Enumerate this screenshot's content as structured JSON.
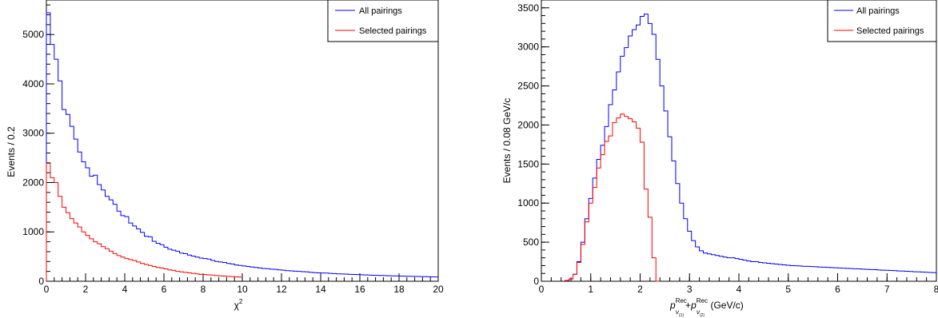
{
  "chart_data": [
    {
      "type": "step",
      "xlabel": "χ",
      "xlabel_superscript": "2",
      "ylabel": "Events / 0.2",
      "xlim": [
        0,
        20
      ],
      "ylim": [
        0,
        5700
      ],
      "x_ticks": [
        "0",
        "2",
        "4",
        "6",
        "8",
        "10",
        "12",
        "14",
        "16",
        "18",
        "20"
      ],
      "y_ticks": [
        "0",
        "1000",
        "2000",
        "3000",
        "4000",
        "5000"
      ],
      "x_tick_values": [
        0,
        2,
        4,
        6,
        8,
        10,
        12,
        14,
        16,
        18,
        20
      ],
      "y_tick_values": [
        0,
        1000,
        2000,
        3000,
        4000,
        5000
      ],
      "legend_position": "top-right",
      "bin_width": 0.2,
      "series": [
        {
          "name": "All pairings",
          "color": "#0000ff",
          "x_range": [
            0,
            20
          ],
          "values": [
            5440,
            4800,
            4500,
            4060,
            3480,
            3380,
            3140,
            2880,
            2620,
            2420,
            2300,
            2130,
            2150,
            1960,
            1850,
            1720,
            1650,
            1560,
            1420,
            1330,
            1310,
            1180,
            1120,
            1060,
            990,
            910,
            900,
            810,
            770,
            740,
            690,
            650,
            630,
            610,
            570,
            560,
            530,
            510,
            490,
            470,
            460,
            450,
            420,
            400,
            390,
            380,
            360,
            350,
            330,
            320,
            310,
            300,
            290,
            280,
            270,
            260,
            255,
            245,
            240,
            230,
            225,
            215,
            210,
            205,
            200,
            195,
            190,
            180,
            175,
            170,
            168,
            165,
            160,
            155,
            150,
            148,
            145,
            140,
            138,
            135,
            132,
            128,
            125,
            122,
            120,
            118,
            115,
            112,
            110,
            108,
            106,
            104,
            102,
            100,
            98,
            96,
            94,
            92,
            90,
            88
          ]
        },
        {
          "name": "Selected pairings",
          "color": "#ff0000",
          "x_range": [
            0,
            10
          ],
          "values": [
            2390,
            2100,
            2000,
            1720,
            1500,
            1390,
            1270,
            1180,
            1100,
            1000,
            930,
            860,
            800,
            760,
            700,
            660,
            610,
            560,
            520,
            490,
            460,
            440,
            420,
            390,
            360,
            340,
            320,
            300,
            280,
            270,
            250,
            230,
            220,
            200,
            190,
            180,
            170,
            160,
            150,
            140,
            135,
            130,
            125,
            115,
            110,
            105,
            100,
            95,
            90,
            85
          ]
        }
      ]
    },
    {
      "type": "step",
      "xlabel_p1": "p",
      "xlabel_sup1": "Rec",
      "xlabel_sub1": "ν",
      "xlabel_subsub1": "(1)",
      "xlabel_plus": "+",
      "xlabel_p2": "p",
      "xlabel_sup2": "Rec",
      "xlabel_sub2": "ν",
      "xlabel_subsub2": "(2)",
      "xlabel_unit": " (GeV/c)",
      "ylabel": "Events / 0.08 GeV/c",
      "xlim": [
        0,
        8
      ],
      "ylim": [
        0,
        3600
      ],
      "x_ticks": [
        "0",
        "1",
        "2",
        "3",
        "4",
        "5",
        "6",
        "7",
        "8"
      ],
      "y_ticks": [
        "0",
        "500",
        "1000",
        "1500",
        "2000",
        "2500",
        "3000",
        "3500"
      ],
      "x_tick_values": [
        0,
        1,
        2,
        3,
        4,
        5,
        6,
        7,
        8
      ],
      "y_tick_values": [
        0,
        500,
        1000,
        1500,
        2000,
        2500,
        3000,
        3500
      ],
      "legend_position": "top-right",
      "bin_width": 0.08,
      "series": [
        {
          "name": "All pairings",
          "color": "#0000ff",
          "x_range": [
            0.48,
            8.0
          ],
          "values": [
            10,
            30,
            90,
            250,
            500,
            800,
            1060,
            1320,
            1560,
            1740,
            1980,
            2260,
            2450,
            2680,
            2880,
            2990,
            3140,
            3220,
            3280,
            3390,
            3420,
            3300,
            3160,
            2840,
            2500,
            2180,
            1850,
            1540,
            1250,
            1000,
            800,
            640,
            520,
            440,
            390,
            360,
            350,
            340,
            330,
            320,
            310,
            300,
            300,
            290,
            280,
            270,
            260,
            250,
            250,
            240,
            235,
            230,
            225,
            220,
            215,
            210,
            205,
            200,
            198,
            195,
            192,
            190,
            188,
            185,
            182,
            180,
            178,
            175,
            172,
            170,
            168,
            165,
            162,
            160,
            158,
            155,
            152,
            150,
            148,
            145,
            142,
            140,
            138,
            135,
            132,
            130,
            128,
            125,
            122,
            120,
            118,
            115,
            112,
            110
          ]
        },
        {
          "name": "Selected pairings",
          "color": "#ff0000",
          "x_range": [
            0.48,
            2.4
          ],
          "values": [
            10,
            30,
            90,
            240,
            470,
            760,
            1000,
            1200,
            1450,
            1620,
            1790,
            1860,
            2030,
            2090,
            2140,
            2110,
            2080,
            2040,
            1960,
            1780,
            1180,
            820,
            300,
            0
          ]
        }
      ]
    }
  ]
}
